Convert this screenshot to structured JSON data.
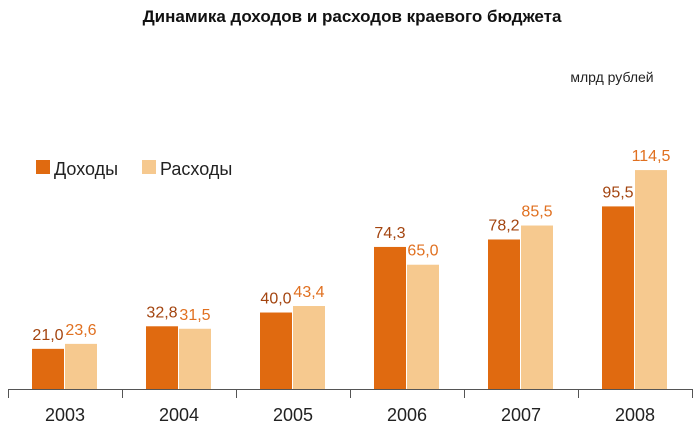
{
  "chart_data": {
    "type": "bar",
    "title": "Динамика доходов и расходов краевого бюджета",
    "units": "млрд рублей",
    "categories": [
      "2003",
      "2004",
      "2005",
      "2006",
      "2007",
      "2008"
    ],
    "series": [
      {
        "name": "Доходы",
        "color": "#e06a10",
        "values": [
          21.0,
          32.8,
          40.0,
          74.3,
          78.2,
          95.5
        ],
        "labels": [
          "21,0",
          "32,8",
          "40,0",
          "74,3",
          "78,2",
          "95,5"
        ]
      },
      {
        "name": "Расходы",
        "color": "#f6c98f",
        "values": [
          23.6,
          31.5,
          43.4,
          65.0,
          85.5,
          114.5
        ],
        "labels": [
          "23,6",
          "31,5",
          "43,4",
          "65,0",
          "85,5",
          "114,5"
        ]
      }
    ],
    "label_colors": [
      "#a3440f",
      "#e07020"
    ],
    "ylim": [
      0,
      115
    ],
    "grid": false,
    "legend_position": "left"
  }
}
